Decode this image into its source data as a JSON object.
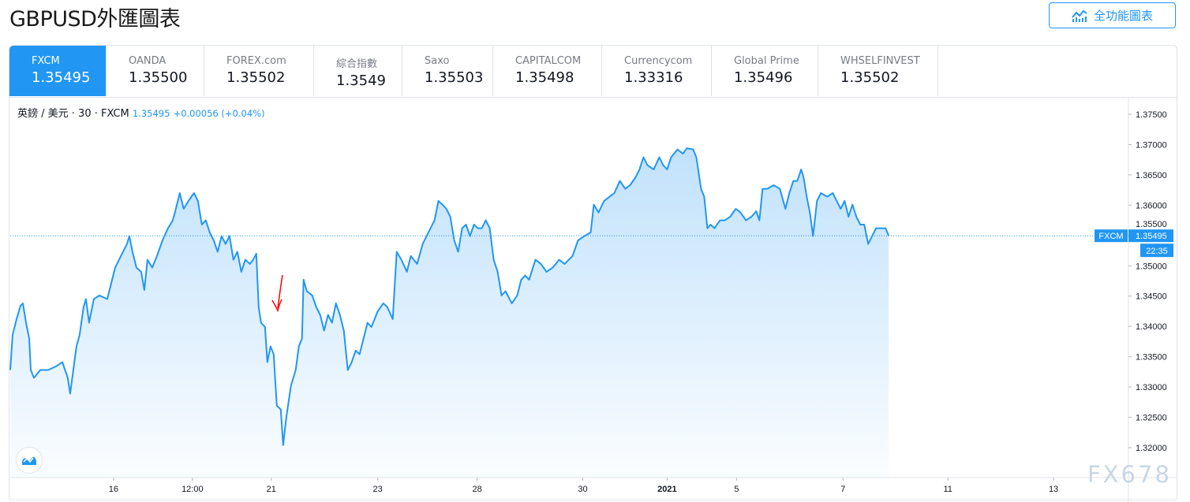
{
  "page": {
    "title": "GBPUSD外匯圖表",
    "full_chart_button": "全功能圖表"
  },
  "tabs": [
    {
      "name": "FXCM",
      "value": "1.35495",
      "active": true
    },
    {
      "name": "OANDA",
      "value": "1.35500"
    },
    {
      "name": "FOREX.com",
      "value": "1.35502"
    },
    {
      "name": "綜合指數",
      "value": "1.3549"
    },
    {
      "name": "Saxo",
      "value": "1.35503"
    },
    {
      "name": "CAPITALCOM",
      "value": "1.35498"
    },
    {
      "name": "Currencycom",
      "value": "1.33316"
    },
    {
      "name": "Global Prime",
      "value": "1.35496"
    },
    {
      "name": "WHSELFINVEST",
      "value": "1.35502"
    }
  ],
  "legend": {
    "symbol": "英鎊 / 美元 · 30 · FXCM",
    "price": "1.35495",
    "change": "+0.00056 (+0.04%)"
  },
  "watermark": "FX678",
  "colors": {
    "accent": "#2196f3",
    "line": "#2196f3",
    "annotation": "#ff0000"
  },
  "chart_data": {
    "type": "area",
    "symbol": "GBPUSD",
    "interval": "30",
    "ylim": [
      1.3165,
      1.3785
    ],
    "xlim": [
      0,
      1418
    ],
    "y_ticks": [
      "1.37500",
      "1.37000",
      "1.36500",
      "1.36000",
      "1.35500",
      "1.35000",
      "1.34500",
      "1.34000",
      "1.33500",
      "1.33000",
      "1.32500",
      "1.32000"
    ],
    "x_ticks": [
      {
        "t": 131,
        "label": "16"
      },
      {
        "t": 231,
        "label": "12:00"
      },
      {
        "t": 331,
        "label": "21"
      },
      {
        "t": 466,
        "label": "23"
      },
      {
        "t": 592,
        "label": "28"
      },
      {
        "t": 726,
        "label": "30"
      },
      {
        "t": 833,
        "label": "2021",
        "bold": true
      },
      {
        "t": 921,
        "label": "5"
      },
      {
        "t": 1056,
        "label": "7"
      },
      {
        "t": 1189,
        "label": "11"
      },
      {
        "t": 1323,
        "label": "13"
      }
    ],
    "last_price_label": {
      "name": "FXCM",
      "price": "1.35495",
      "countdown": "22:35"
    },
    "last_price": 1.35495,
    "points": [
      [
        0,
        1.3328
      ],
      [
        3,
        1.3386
      ],
      [
        8,
        1.3412
      ],
      [
        13,
        1.3434
      ],
      [
        16,
        1.3438
      ],
      [
        20,
        1.3406
      ],
      [
        24,
        1.338
      ],
      [
        26,
        1.3328
      ],
      [
        30,
        1.3315
      ],
      [
        38,
        1.3328
      ],
      [
        48,
        1.3328
      ],
      [
        58,
        1.3334
      ],
      [
        66,
        1.3341
      ],
      [
        73,
        1.3315
      ],
      [
        76,
        1.3289
      ],
      [
        80,
        1.3328
      ],
      [
        84,
        1.3367
      ],
      [
        88,
        1.3386
      ],
      [
        93,
        1.3432
      ],
      [
        96,
        1.3445
      ],
      [
        100,
        1.3406
      ],
      [
        106,
        1.3445
      ],
      [
        113,
        1.3451
      ],
      [
        123,
        1.3445
      ],
      [
        128,
        1.3471
      ],
      [
        133,
        1.3497
      ],
      [
        138,
        1.351
      ],
      [
        143,
        1.3523
      ],
      [
        148,
        1.3536
      ],
      [
        151,
        1.3549
      ],
      [
        155,
        1.3523
      ],
      [
        160,
        1.3497
      ],
      [
        166,
        1.349
      ],
      [
        170,
        1.346
      ],
      [
        174,
        1.351
      ],
      [
        180,
        1.3497
      ],
      [
        186,
        1.3516
      ],
      [
        193,
        1.3542
      ],
      [
        200,
        1.3562
      ],
      [
        206,
        1.3575
      ],
      [
        210,
        1.3594
      ],
      [
        215,
        1.362
      ],
      [
        220,
        1.3594
      ],
      [
        226,
        1.3607
      ],
      [
        233,
        1.362
      ],
      [
        238,
        1.3607
      ],
      [
        243,
        1.3568
      ],
      [
        248,
        1.3575
      ],
      [
        253,
        1.3555
      ],
      [
        258,
        1.3542
      ],
      [
        263,
        1.3523
      ],
      [
        268,
        1.3549
      ],
      [
        273,
        1.3536
      ],
      [
        278,
        1.3549
      ],
      [
        283,
        1.351
      ],
      [
        288,
        1.3523
      ],
      [
        293,
        1.349
      ],
      [
        298,
        1.351
      ],
      [
        304,
        1.3503
      ],
      [
        308,
        1.351
      ],
      [
        312,
        1.352
      ],
      [
        315,
        1.3432
      ],
      [
        318,
        1.3406
      ],
      [
        323,
        1.3399
      ],
      [
        326,
        1.3341
      ],
      [
        330,
        1.3367
      ],
      [
        334,
        1.3354
      ],
      [
        338,
        1.3269
      ],
      [
        343,
        1.3263
      ],
      [
        346,
        1.3204
      ],
      [
        350,
        1.325
      ],
      [
        356,
        1.3302
      ],
      [
        362,
        1.3328
      ],
      [
        366,
        1.3367
      ],
      [
        370,
        1.338
      ],
      [
        372,
        1.3477
      ],
      [
        376,
        1.3458
      ],
      [
        383,
        1.3451
      ],
      [
        388,
        1.3432
      ],
      [
        393,
        1.3419
      ],
      [
        398,
        1.3393
      ],
      [
        403,
        1.3419
      ],
      [
        408,
        1.3406
      ],
      [
        413,
        1.3438
      ],
      [
        418,
        1.3419
      ],
      [
        423,
        1.3393
      ],
      [
        428,
        1.3328
      ],
      [
        433,
        1.3341
      ],
      [
        438,
        1.336
      ],
      [
        443,
        1.3354
      ],
      [
        448,
        1.338
      ],
      [
        453,
        1.3406
      ],
      [
        458,
        1.3399
      ],
      [
        466,
        1.3425
      ],
      [
        473,
        1.3438
      ],
      [
        478,
        1.3432
      ],
      [
        485,
        1.3412
      ],
      [
        490,
        1.3523
      ],
      [
        496,
        1.351
      ],
      [
        503,
        1.349
      ],
      [
        508,
        1.3516
      ],
      [
        516,
        1.3503
      ],
      [
        523,
        1.3536
      ],
      [
        528,
        1.3549
      ],
      [
        533,
        1.3562
      ],
      [
        538,
        1.3575
      ],
      [
        543,
        1.3607
      ],
      [
        548,
        1.3601
      ],
      [
        553,
        1.3594
      ],
      [
        558,
        1.3581
      ],
      [
        563,
        1.3542
      ],
      [
        568,
        1.3523
      ],
      [
        573,
        1.3562
      ],
      [
        578,
        1.3568
      ],
      [
        583,
        1.3549
      ],
      [
        588,
        1.3568
      ],
      [
        593,
        1.3562
      ],
      [
        598,
        1.3562
      ],
      [
        603,
        1.3575
      ],
      [
        608,
        1.3562
      ],
      [
        613,
        1.351
      ],
      [
        618,
        1.349
      ],
      [
        623,
        1.3451
      ],
      [
        628,
        1.3458
      ],
      [
        636,
        1.3438
      ],
      [
        643,
        1.3451
      ],
      [
        648,
        1.3477
      ],
      [
        653,
        1.3484
      ],
      [
        658,
        1.3477
      ],
      [
        666,
        1.351
      ],
      [
        673,
        1.3503
      ],
      [
        680,
        1.349
      ],
      [
        688,
        1.3497
      ],
      [
        696,
        1.351
      ],
      [
        703,
        1.3503
      ],
      [
        713,
        1.3516
      ],
      [
        720,
        1.3542
      ],
      [
        728,
        1.3549
      ],
      [
        736,
        1.3555
      ],
      [
        740,
        1.3601
      ],
      [
        746,
        1.3588
      ],
      [
        753,
        1.3607
      ],
      [
        760,
        1.3614
      ],
      [
        766,
        1.362
      ],
      [
        773,
        1.364
      ],
      [
        780,
        1.3627
      ],
      [
        786,
        1.3633
      ],
      [
        793,
        1.3646
      ],
      [
        798,
        1.3659
      ],
      [
        803,
        1.3679
      ],
      [
        808,
        1.3666
      ],
      [
        816,
        1.3659
      ],
      [
        823,
        1.3679
      ],
      [
        828,
        1.3666
      ],
      [
        833,
        1.3659
      ],
      [
        838,
        1.3679
      ],
      [
        846,
        1.3692
      ],
      [
        853,
        1.3685
      ],
      [
        858,
        1.3694
      ],
      [
        866,
        1.3692
      ],
      [
        870,
        1.3679
      ],
      [
        876,
        1.3627
      ],
      [
        880,
        1.3614
      ],
      [
        884,
        1.3562
      ],
      [
        888,
        1.3568
      ],
      [
        893,
        1.3562
      ],
      [
        900,
        1.3575
      ],
      [
        906,
        1.3575
      ],
      [
        913,
        1.3581
      ],
      [
        920,
        1.3594
      ],
      [
        926,
        1.3588
      ],
      [
        933,
        1.3575
      ],
      [
        940,
        1.3581
      ],
      [
        946,
        1.359
      ],
      [
        950,
        1.3575
      ],
      [
        954,
        1.3627
      ],
      [
        960,
        1.3627
      ],
      [
        968,
        1.3633
      ],
      [
        976,
        1.3627
      ],
      [
        983,
        1.3594
      ],
      [
        988,
        1.362
      ],
      [
        993,
        1.364
      ],
      [
        998,
        1.364
      ],
      [
        1003,
        1.3659
      ],
      [
        1006,
        1.3646
      ],
      [
        1010,
        1.3614
      ],
      [
        1014,
        1.3588
      ],
      [
        1018,
        1.3549
      ],
      [
        1023,
        1.3607
      ],
      [
        1028,
        1.362
      ],
      [
        1036,
        1.3614
      ],
      [
        1043,
        1.362
      ],
      [
        1048,
        1.3607
      ],
      [
        1053,
        1.3594
      ],
      [
        1058,
        1.3607
      ],
      [
        1063,
        1.3581
      ],
      [
        1068,
        1.3601
      ],
      [
        1073,
        1.3581
      ],
      [
        1078,
        1.3568
      ],
      [
        1083,
        1.3568
      ],
      [
        1088,
        1.3536
      ],
      [
        1093,
        1.3549
      ],
      [
        1098,
        1.3562
      ],
      [
        1106,
        1.3562
      ],
      [
        1110,
        1.3562
      ],
      [
        1114,
        1.35495
      ]
    ]
  }
}
